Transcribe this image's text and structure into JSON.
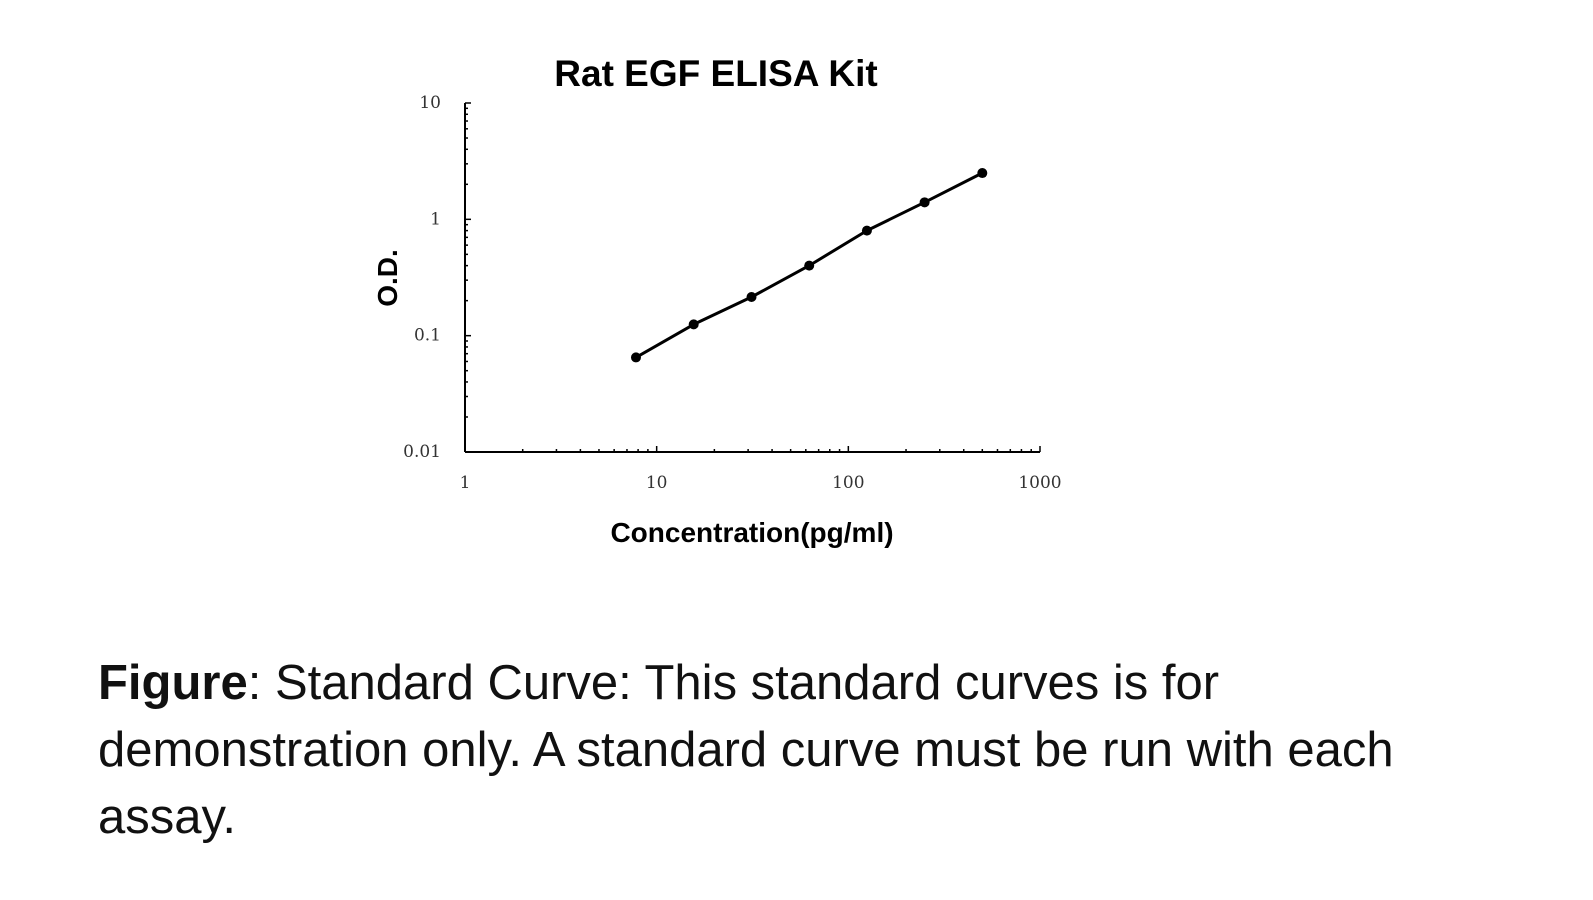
{
  "chart_data": {
    "type": "line",
    "title": "Rat EGF ELISA Kit",
    "xlabel": "Concentration(pg/ml)",
    "ylabel": "O.D.",
    "x_scale": "log",
    "y_scale": "log",
    "xlim": [
      1,
      1000
    ],
    "ylim": [
      0.01,
      10
    ],
    "x_ticks": [
      "1",
      "10",
      "100",
      "1000"
    ],
    "y_ticks": [
      "0.01",
      "0.1",
      "1",
      "10"
    ],
    "grid": false,
    "markers": true,
    "series": [
      {
        "x": [
          7.8,
          15.6,
          31.25,
          62.5,
          125,
          250,
          500
        ],
        "y": [
          0.065,
          0.125,
          0.215,
          0.4,
          0.8,
          1.4,
          2.5
        ]
      }
    ],
    "colors": {
      "line": "#000000",
      "axis": "#000000"
    }
  },
  "caption": {
    "lead": "Figure",
    "text": ": Standard Curve: This standard curves is for demonstration only. A standard curve must be run with each assay."
  }
}
